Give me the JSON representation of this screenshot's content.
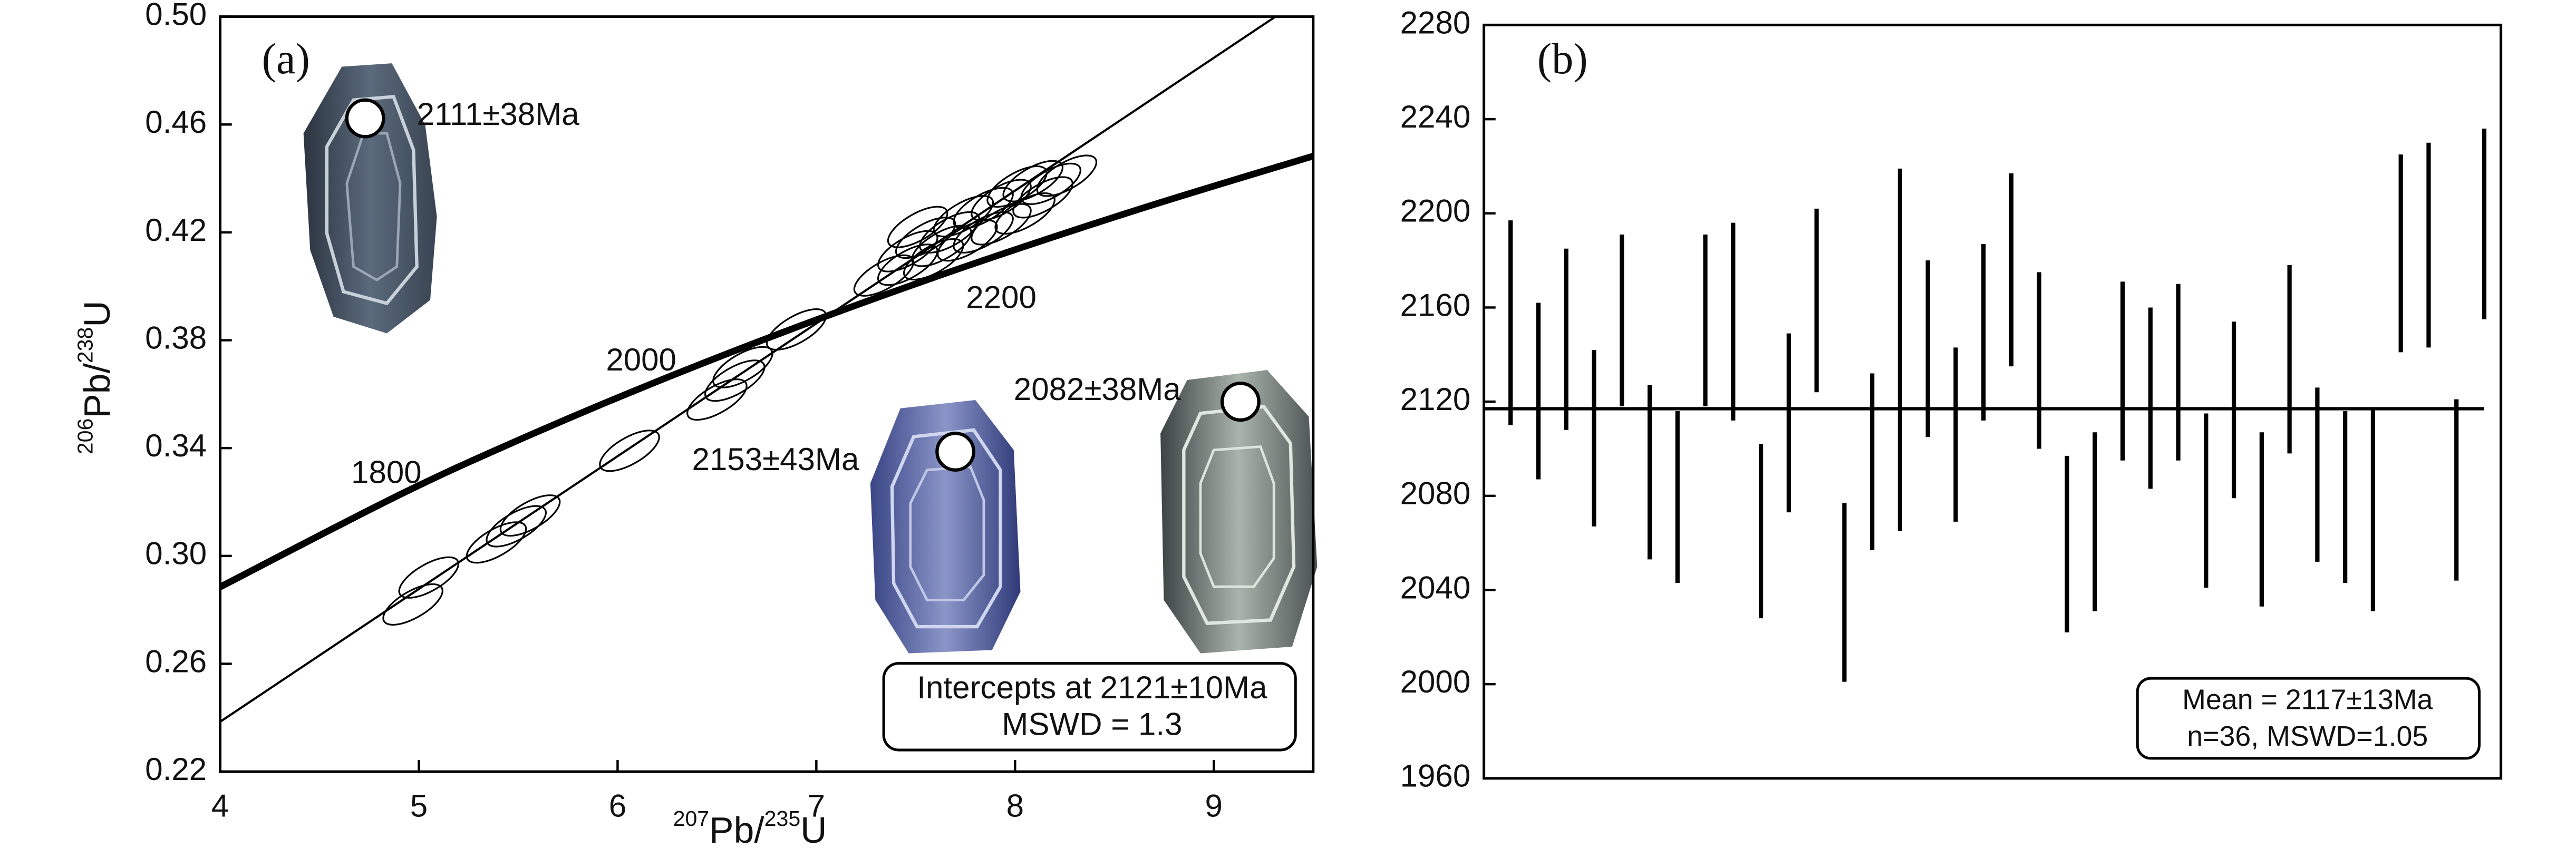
{
  "chart_data": [
    {
      "type": "concordia",
      "panel_label": "(a)",
      "x_label": [
        {
          "sup": "207"
        },
        {
          "text": "Pb/"
        },
        {
          "sup": "235"
        },
        {
          "text": "U"
        }
      ],
      "y_label": [
        {
          "sup": "206"
        },
        {
          "text": "Pb/"
        },
        {
          "sup": "238"
        },
        {
          "text": "U"
        }
      ],
      "xlim": [
        4,
        9.5
      ],
      "xticks": [
        4,
        5,
        6,
        7,
        8,
        9
      ],
      "ylim": [
        0.22,
        0.5
      ],
      "yticks": [
        0.22,
        0.26,
        {
          "value": 0.3,
          "label": "0.30"
        },
        0.34,
        0.38,
        0.42,
        0.46,
        {
          "value": 0.5,
          "label": "0.50"
        }
      ],
      "concordia": {
        "x": [
          4.0,
          4.887,
          5.496,
          6.169,
          6.91,
          7.729,
          8.633,
          9.5
        ],
        "y": [
          0.2885,
          0.3221,
          0.3428,
          0.3638,
          0.3851,
          0.4068,
          0.4288,
          0.4483
        ],
        "labels": [
          null,
          "1800",
          null,
          "2000",
          null,
          "2200",
          null,
          null
        ]
      },
      "discordia": {
        "x": [
          4,
          9.31
        ],
        "y": [
          0.2385,
          0.5
        ]
      },
      "ellipses": {
        "x": [
          4.97,
          5.05,
          5.39,
          5.49,
          5.56,
          6.06,
          6.5,
          6.59,
          6.63,
          6.9,
          7.34,
          7.46,
          7.55,
          7.59,
          7.67,
          7.74,
          7.84,
          7.93,
          8.01,
          8.09,
          8.18,
          8.26,
          7.51,
          7.63,
          7.76,
          7.93,
          8.05,
          8.14,
          7.46,
          7.84
        ],
        "y": [
          0.282,
          0.292,
          0.305,
          0.311,
          0.315,
          0.339,
          0.358,
          0.365,
          0.37,
          0.384,
          0.404,
          0.413,
          0.418,
          0.41,
          0.42,
          0.426,
          0.429,
          0.432,
          0.437,
          0.439,
          0.438,
          0.441,
          0.422,
          0.415,
          0.417,
          0.423,
          0.427,
          0.433,
          0.408,
          0.42
        ]
      },
      "annotations": [
        "2111±38Ma",
        "2153±43Ma",
        "2082±38Ma"
      ],
      "result_box": [
        "Intercepts at 2121±10Ma",
        "MSWD = 1.3"
      ]
    },
    {
      "type": "error_bar",
      "panel_label": "(b)",
      "ylim": [
        1960,
        2280
      ],
      "yticks": [
        1960,
        2000,
        2040,
        2080,
        2120,
        2160,
        2200,
        2240,
        2280
      ],
      "values": [
        2153.5,
        2124.5,
        2146.5,
        2104.5,
        2154.5,
        2090,
        2079.5,
        2154.5,
        2154,
        2065,
        2111,
        2163,
        2039,
        2094.5,
        2142,
        2142.5,
        2106,
        2149.5,
        2176,
        2137.5,
        2059.5,
        2069,
        2133,
        2121.5,
        2132.5,
        2078,
        2116.5,
        2070,
        2138,
        2089,
        2079.5,
        2074,
        2183,
        2186.5,
        2082.5,
        2195.5
      ],
      "errors": [
        43.5,
        37.5,
        38.5,
        37.5,
        36.5,
        37,
        36.5,
        36.5,
        42,
        37,
        38,
        39,
        38,
        37.5,
        77,
        37.5,
        37,
        37.5,
        41,
        37.5,
        37.5,
        38,
        38,
        38.5,
        37.5,
        37,
        37.5,
        37,
        40,
        37,
        36.5,
        43,
        42,
        43.5,
        38.5,
        40.5
      ],
      "mean": 2117,
      "result_box": [
        "Mean = 2117±13Ma",
        "n=36, MSWD=1.05"
      ]
    }
  ]
}
